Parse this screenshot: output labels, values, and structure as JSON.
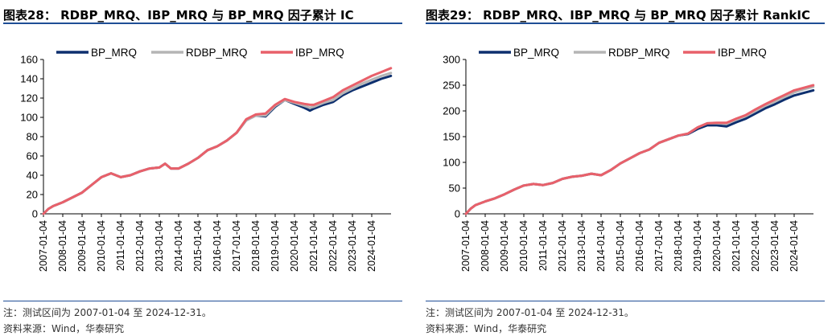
{
  "figures": [
    {
      "title": "图表28： RDBP_MRQ、IBP_MRQ 与 BP_MRQ 因子累计 IC",
      "note": "注：测试区间为 2007-01-04 至 2024-12-31。",
      "source": "资料来源：Wind，华泰研究"
    },
    {
      "title": "图表29： RDBP_MRQ、IBP_MRQ 与 BP_MRQ 因子累计 RankIC",
      "note": "注：测试区间为 2007-01-04 至 2024-12-31。",
      "source": "资料来源：Wind，华泰研究"
    }
  ],
  "chart_data": [
    {
      "type": "line",
      "title": "RDBP_MRQ、IBP_MRQ 与 BP_MRQ 因子累计 IC",
      "xlabel": "",
      "ylabel": "",
      "ylim": [
        0,
        160
      ],
      "yticks": [
        0,
        20,
        40,
        60,
        80,
        100,
        120,
        140,
        160
      ],
      "xlim": [
        2007.0,
        2025.0
      ],
      "xticks": [
        "2007-01-04",
        "2008-01-04",
        "2009-01-04",
        "2010-01-04",
        "2011-01-04",
        "2012-01-04",
        "2013-01-04",
        "2014-01-04",
        "2015-01-04",
        "2016-01-04",
        "2017-01-04",
        "2018-01-04",
        "2019-01-04",
        "2020-01-04",
        "2021-01-04",
        "2022-01-04",
        "2023-01-04",
        "2024-01-04"
      ],
      "legend": "top-left",
      "x": [
        2007.0,
        2007.25,
        2007.5,
        2008.0,
        2008.5,
        2009.0,
        2009.5,
        2010.0,
        2010.5,
        2011.0,
        2011.5,
        2012.0,
        2012.5,
        2013.0,
        2013.3,
        2013.6,
        2014.0,
        2014.5,
        2015.0,
        2015.5,
        2016.0,
        2016.5,
        2017.0,
        2017.5,
        2018.0,
        2018.5,
        2019.0,
        2019.5,
        2020.0,
        2020.5,
        2020.8,
        2021.0,
        2021.5,
        2022.0,
        2022.5,
        2023.0,
        2023.5,
        2024.0,
        2024.5,
        2024.99
      ],
      "series": [
        {
          "name": "BP_MRQ",
          "color": "#0d2f6e",
          "values": [
            0,
            5,
            8,
            12,
            17,
            22,
            30,
            38,
            42,
            38,
            40,
            44,
            47,
            48,
            52,
            47,
            47,
            52,
            58,
            66,
            70,
            76,
            84,
            97,
            102,
            101,
            111,
            118,
            114,
            110,
            107,
            109,
            113,
            116,
            123,
            128,
            132,
            136,
            140,
            143
          ]
        },
        {
          "name": "RDBP_MRQ",
          "color": "#b5b5b5",
          "values": [
            0,
            5,
            8,
            12,
            17,
            22,
            30,
            38,
            42,
            38,
            40,
            44,
            47,
            48,
            52,
            47,
            47,
            52,
            58,
            66,
            70,
            76,
            84,
            97,
            102,
            102,
            112,
            118,
            115,
            112,
            110,
            111,
            115,
            118,
            125,
            130,
            135,
            139,
            143,
            146
          ]
        },
        {
          "name": "IBP_MRQ",
          "color": "#e8606a",
          "values": [
            0,
            5,
            8,
            12,
            17,
            22,
            30,
            38,
            42,
            38,
            40,
            44,
            47,
            48,
            52,
            47,
            47,
            52,
            58,
            66,
            70,
            76,
            84,
            98,
            103,
            104,
            113,
            119,
            116,
            114,
            113,
            113,
            117,
            121,
            128,
            133,
            138,
            143,
            147,
            151
          ]
        }
      ]
    },
    {
      "type": "line",
      "title": "RDBP_MRQ、IBP_MRQ 与 BP_MRQ 因子累计 RankIC",
      "xlabel": "",
      "ylabel": "",
      "ylim": [
        0,
        300
      ],
      "yticks": [
        0,
        50,
        100,
        150,
        200,
        250,
        300
      ],
      "xlim": [
        2007.0,
        2025.0
      ],
      "xticks": [
        "2007-01-04",
        "2008-01-04",
        "2009-01-04",
        "2010-01-04",
        "2011-01-04",
        "2012-01-04",
        "2013-01-04",
        "2014-01-04",
        "2015-01-04",
        "2016-01-04",
        "2017-01-04",
        "2018-01-04",
        "2019-01-04",
        "2020-01-04",
        "2021-01-04",
        "2022-01-04",
        "2023-01-04",
        "2024-01-04"
      ],
      "legend": "top-left",
      "x": [
        2007.0,
        2007.25,
        2007.5,
        2008.0,
        2008.5,
        2009.0,
        2009.5,
        2010.0,
        2010.5,
        2011.0,
        2011.5,
        2012.0,
        2012.5,
        2013.0,
        2013.5,
        2014.0,
        2014.5,
        2015.0,
        2015.5,
        2016.0,
        2016.5,
        2017.0,
        2017.5,
        2018.0,
        2018.5,
        2019.0,
        2019.5,
        2020.0,
        2020.5,
        2021.0,
        2021.5,
        2022.0,
        2022.5,
        2023.0,
        2023.5,
        2024.0,
        2024.5,
        2024.99
      ],
      "series": [
        {
          "name": "BP_MRQ",
          "color": "#0d2f6e",
          "values": [
            0,
            10,
            17,
            24,
            30,
            38,
            47,
            55,
            58,
            56,
            60,
            68,
            72,
            74,
            78,
            75,
            85,
            98,
            108,
            118,
            125,
            138,
            145,
            152,
            155,
            165,
            172,
            172,
            170,
            178,
            185,
            195,
            205,
            213,
            222,
            230,
            235,
            240
          ]
        },
        {
          "name": "RDBP_MRQ",
          "color": "#b5b5b5",
          "values": [
            0,
            10,
            17,
            24,
            30,
            38,
            47,
            55,
            58,
            56,
            60,
            68,
            72,
            74,
            78,
            75,
            85,
            98,
            108,
            118,
            125,
            138,
            145,
            152,
            156,
            168,
            176,
            176,
            175,
            183,
            190,
            200,
            210,
            218,
            227,
            236,
            242,
            247
          ]
        },
        {
          "name": "IBP_MRQ",
          "color": "#e8606a",
          "values": [
            0,
            10,
            17,
            24,
            30,
            38,
            47,
            55,
            58,
            56,
            60,
            68,
            72,
            74,
            78,
            75,
            85,
            98,
            108,
            118,
            125,
            138,
            145,
            152,
            156,
            168,
            176,
            177,
            177,
            185,
            192,
            203,
            213,
            222,
            231,
            240,
            245,
            250
          ]
        }
      ]
    }
  ]
}
